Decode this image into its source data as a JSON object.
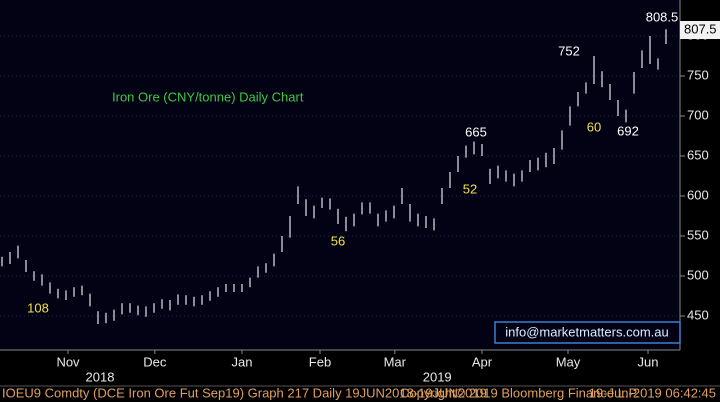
{
  "chart_data": {
    "type": "hilo",
    "title": "Iron Ore (CNY/tonne) Daily Chart",
    "high": [
      524,
      530,
      538,
      520,
      506,
      502,
      492,
      484,
      482,
      486,
      488,
      478,
      456,
      454,
      458,
      466,
      466,
      463,
      462,
      466,
      471,
      470,
      477,
      476,
      474,
      476,
      481,
      486,
      490,
      490,
      490,
      498,
      512,
      516,
      528,
      550,
      575,
      612,
      596,
      588,
      598,
      597,
      584,
      574,
      578,
      592,
      592,
      578,
      582,
      588,
      610,
      590,
      578,
      575,
      572,
      610,
      630,
      650,
      663,
      668,
      665,
      634,
      638,
      632,
      628,
      632,
      645,
      648,
      654,
      660,
      682,
      712,
      730,
      742,
      775,
      756,
      740,
      720,
      708,
      755,
      782,
      800,
      772,
      808.5
    ],
    "low": [
      512,
      515,
      522,
      505,
      494,
      488,
      478,
      472,
      470,
      474,
      476,
      462,
      440,
      441,
      444,
      452,
      454,
      451,
      449,
      454,
      459,
      457,
      464,
      464,
      462,
      464,
      469,
      474,
      480,
      480,
      480,
      486,
      498,
      504,
      512,
      530,
      548,
      590,
      575,
      572,
      585,
      583,
      565,
      556,
      562,
      577,
      578,
      562,
      568,
      572,
      590,
      568,
      562,
      560,
      557,
      590,
      610,
      630,
      648,
      652,
      650,
      615,
      622,
      618,
      612,
      618,
      630,
      632,
      636,
      640,
      658,
      688,
      712,
      728,
      740,
      736,
      720,
      700,
      692,
      728,
      760,
      765,
      758,
      790
    ],
    "color": "#e6e6e6",
    "xlim": [
      -0.25,
      84.75
    ],
    "xticks": [
      {
        "value": 8.25,
        "label": "Nov"
      },
      {
        "value": 19.1,
        "label": "Dec"
      },
      {
        "value": 30,
        "label": "Jan"
      },
      {
        "value": 39.75,
        "label": "Feb"
      },
      {
        "value": 49.1,
        "label": "Mar"
      },
      {
        "value": 60,
        "label": "Apr"
      },
      {
        "value": 70.75,
        "label": "May"
      },
      {
        "value": 80.75,
        "label": "Jun"
      }
    ],
    "years": [
      {
        "value": 12.25,
        "label": "2018"
      },
      {
        "value": 54.4,
        "label": "2019"
      }
    ],
    "ylim": [
      407.5,
      845
    ],
    "yticks": [
      450,
      500,
      550,
      600,
      650,
      700,
      750,
      800
    ],
    "grid": true,
    "last_price": 807.5,
    "annotations": [
      "808.5",
      "752",
      "665",
      "692",
      "108",
      "56",
      "52",
      "60"
    ],
    "watermark": "info@marketmatters.com.au"
  },
  "footer": [
    "IOEU9 Comdty (DCE Iron Ore Fut  Sep19) Graph 217  Daily 19JUN2018-19JUN2019",
    "Copyright© 2019 Bloomberg Finance L.P.",
    "19-Jun-2019 06:42:45"
  ]
}
